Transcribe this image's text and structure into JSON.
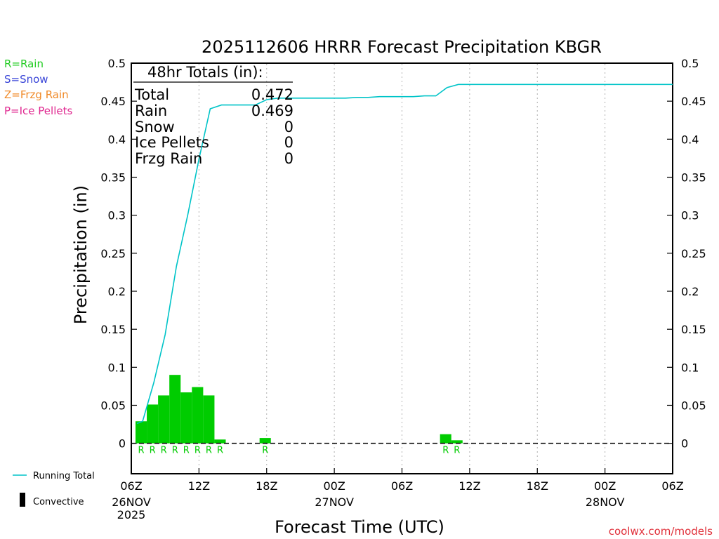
{
  "chart_data": {
    "type": "bar",
    "title": "2025112606 HRRR Forecast Precipitation KBGR",
    "xlabel": "Forecast Time (UTC)",
    "ylabel": "Precipitation (in)",
    "ylim": [
      -0.04,
      0.5
    ],
    "yticks": [
      0,
      0.05,
      0.1,
      0.15,
      0.2,
      0.25,
      0.3,
      0.35,
      0.4,
      0.45,
      0.5
    ],
    "ytick_labels": [
      "0",
      "0.05",
      "0.1",
      "0.15",
      "0.2",
      "0.25",
      "0.3",
      "0.35",
      "0.4",
      "0.45",
      "0.5"
    ],
    "xlim_hours": [
      0,
      48
    ],
    "xticks": [
      {
        "hour": 0,
        "label": "06Z",
        "date": "26NOV",
        "year": "2025"
      },
      {
        "hour": 6,
        "label": "12Z",
        "date": "",
        "year": ""
      },
      {
        "hour": 12,
        "label": "18Z",
        "date": "",
        "year": ""
      },
      {
        "hour": 18,
        "label": "00Z",
        "date": "27NOV",
        "year": ""
      },
      {
        "hour": 24,
        "label": "06Z",
        "date": "",
        "year": ""
      },
      {
        "hour": 30,
        "label": "12Z",
        "date": "",
        "year": ""
      },
      {
        "hour": 36,
        "label": "18Z",
        "date": "",
        "year": ""
      },
      {
        "hour": 42,
        "label": "00Z",
        "date": "28NOV",
        "year": ""
      },
      {
        "hour": 48,
        "label": "06Z",
        "date": "",
        "year": ""
      }
    ],
    "bars": [
      {
        "hour": 1,
        "value": 0.029,
        "ptype": "R"
      },
      {
        "hour": 2,
        "value": 0.051,
        "ptype": "R"
      },
      {
        "hour": 3,
        "value": 0.063,
        "ptype": "R"
      },
      {
        "hour": 4,
        "value": 0.09,
        "ptype": "R"
      },
      {
        "hour": 5,
        "value": 0.067,
        "ptype": "R"
      },
      {
        "hour": 6,
        "value": 0.074,
        "ptype": "R"
      },
      {
        "hour": 7,
        "value": 0.063,
        "ptype": "R"
      },
      {
        "hour": 8,
        "value": 0.005,
        "ptype": "R"
      },
      {
        "hour": 12,
        "value": 0.007,
        "ptype": "R"
      },
      {
        "hour": 28,
        "value": 0.012,
        "ptype": "R"
      },
      {
        "hour": 29,
        "value": 0.004,
        "ptype": "R"
      }
    ],
    "series": [
      {
        "name": "Running Total",
        "x": [
          0.5,
          1,
          2,
          3,
          4,
          5,
          6,
          7,
          8,
          9,
          10,
          11,
          12,
          13,
          14,
          15,
          16,
          17,
          18,
          19,
          20,
          21,
          22,
          23,
          24,
          25,
          26,
          27,
          28,
          29,
          30,
          48
        ],
        "y": [
          0.026,
          0.029,
          0.08,
          0.143,
          0.233,
          0.3,
          0.374,
          0.44,
          0.445,
          0.445,
          0.445,
          0.445,
          0.452,
          0.454,
          0.454,
          0.454,
          0.454,
          0.454,
          0.454,
          0.454,
          0.455,
          0.455,
          0.456,
          0.456,
          0.456,
          0.456,
          0.457,
          0.457,
          0.468,
          0.472,
          0.472,
          0.472
        ]
      }
    ],
    "colors": {
      "rain": "#00cc00",
      "running_total": "#00c4c8"
    }
  },
  "totals": {
    "heading": "48hr Totals (in):",
    "rows": [
      {
        "label": "Total",
        "value": "0.472"
      },
      {
        "label": "Rain",
        "value": "0.469"
      },
      {
        "label": "Snow",
        "value": "0"
      },
      {
        "label": "Ice Pellets",
        "value": "0"
      },
      {
        "label": "Frzg Rain",
        "value": "0"
      }
    ]
  },
  "ptype_legend": [
    {
      "text": "R=Rain",
      "color": "#22cc22"
    },
    {
      "text": "S=Snow",
      "color": "#3a46d8"
    },
    {
      "text": "Z=Frzg Rain",
      "color": "#f08a28"
    },
    {
      "text": "P=Ice Pellets",
      "color": "#e02890"
    }
  ],
  "bottom_legend": {
    "running_total": "Running Total",
    "convective": "Convective"
  },
  "credit": "coolwx.com/models"
}
